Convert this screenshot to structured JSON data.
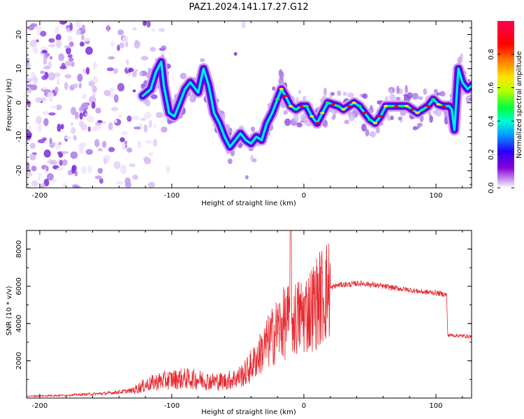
{
  "title": "PAZ1.2024.141.17.27.G12",
  "chart_data": [
    {
      "type": "heatmap",
      "xlabel": "Height of straight line (km)",
      "ylabel": "Frequency (Hz)",
      "xlim": [
        -210,
        127
      ],
      "ylim": [
        -25,
        24
      ],
      "xticks": [
        -200,
        -100,
        0,
        100
      ],
      "yticks": [
        -20,
        -10,
        0,
        10,
        20
      ],
      "colorbar": {
        "label": "Normalized spectral amplitude",
        "range": [
          0,
          1
        ],
        "ticks": [
          "0.0",
          "0.2",
          "0.4",
          "0.6",
          "0.8"
        ],
        "colormap": [
          "#ffffff",
          "#8a00d9",
          "#2a00ff",
          "#00a0ff",
          "#00ffd0",
          "#00ff3c",
          "#b4ff00",
          "#ffe600",
          "#ff7d00",
          "#ff0000",
          "#ff0050"
        ]
      },
      "ridge": {
        "x": [
          -122,
          -116,
          -112,
          -108,
          -106,
          -102,
          -98,
          -94,
          -90,
          -86,
          -80,
          -76,
          -72,
          -68,
          -64,
          -60,
          -56,
          -52,
          -48,
          -44,
          -40,
          -36,
          -32,
          -28,
          -24,
          -20,
          -17,
          -14,
          -10,
          -6,
          -2,
          2,
          6,
          10,
          14,
          18,
          22,
          26,
          30,
          34,
          38,
          42,
          46,
          50,
          54,
          58,
          62,
          66,
          70,
          74,
          78,
          82,
          86,
          90,
          94,
          98,
          102,
          106,
          110,
          112,
          114,
          117,
          120,
          124,
          127
        ],
        "y": [
          2,
          4,
          9,
          12,
          5,
          -3,
          -4,
          0,
          4,
          6,
          3,
          10,
          5,
          -3,
          -6,
          -10,
          -13,
          -11,
          -9,
          -11,
          -12,
          -10,
          -11,
          -6,
          -3,
          1,
          4,
          2,
          -1,
          -2,
          -1,
          -1,
          -4,
          -6,
          -3,
          0,
          -0.5,
          -1,
          -2,
          -1,
          0,
          -1,
          -3,
          -5,
          -6,
          -4,
          -1,
          -1,
          -1,
          -1,
          -1,
          -2,
          -3,
          -2,
          -1,
          1,
          -0.5,
          -1,
          -1,
          -2,
          -8,
          10,
          6,
          4,
          5
        ]
      }
    },
    {
      "type": "line",
      "xlabel": "Height of straight line (km)",
      "ylabel": "SNR (10 * v/v)",
      "xlim": [
        -210,
        127
      ],
      "ylim": [
        0,
        9000
      ],
      "xticks": [
        -200,
        -100,
        0,
        100
      ],
      "yticks": [
        2000,
        4000,
        6000,
        8000
      ],
      "color": "#e8282e",
      "series": [
        {
          "x": [
            -210,
            -180,
            -150,
            -130,
            -120,
            -110,
            -100,
            -90,
            -80,
            -70,
            -60,
            -50,
            -45,
            -40,
            -35,
            -30,
            -25,
            -20,
            -15,
            -10,
            -5,
            0,
            5,
            10,
            15,
            20,
            25,
            30,
            35,
            40,
            45,
            50,
            55,
            60,
            70,
            80,
            90,
            100,
            108,
            109,
            110,
            115,
            120,
            127
          ],
          "y": [
            100,
            150,
            250,
            400,
            700,
            900,
            1000,
            1050,
            1000,
            900,
            900,
            1100,
            1300,
            1700,
            2200,
            2700,
            3200,
            3700,
            4000,
            4200,
            4300,
            4500,
            4800,
            5200,
            5600,
            5900,
            6050,
            6100,
            6100,
            6150,
            6150,
            6100,
            6050,
            6000,
            5900,
            5800,
            5700,
            5650,
            5550,
            3350,
            3380,
            3360,
            3340,
            3300
          ]
        }
      ],
      "spike": {
        "x": -10,
        "y": 9000
      }
    }
  ]
}
